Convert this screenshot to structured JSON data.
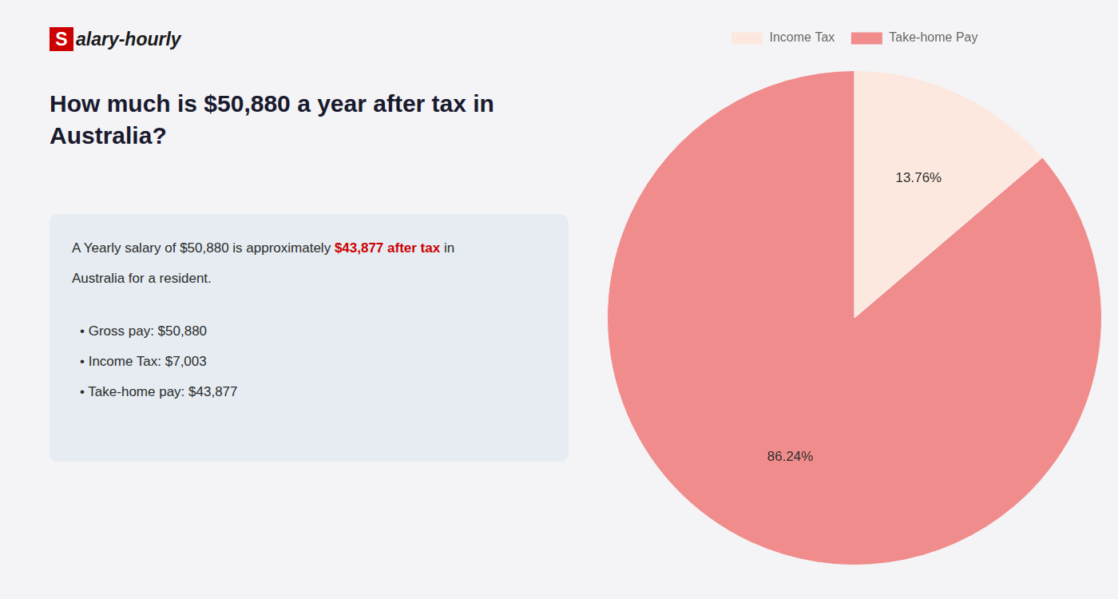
{
  "chart_data": {
    "type": "pie",
    "title": [
      "How much is $50,880 a year after tax in",
      "Australia?"
    ],
    "categories": [
      "Income Tax",
      "Take-home Pay"
    ],
    "values": [
      13.76,
      86.24
    ],
    "value_labels": [
      "13.76%",
      "86.24%"
    ],
    "colors": [
      "#fce8df",
      "#f08c8c"
    ],
    "data_labels": true,
    "legend": "top",
    "annotations": [
      "S",
      "alary-hourly",
      "A Yearly salary of $50,880 is approximately ",
      "$43,877 after tax",
      " in",
      "Australia for a resident.",
      "• Gross pay: $50,880",
      "• Income Tax: $7,003",
      "• Take-home pay: $43,877"
    ]
  }
}
